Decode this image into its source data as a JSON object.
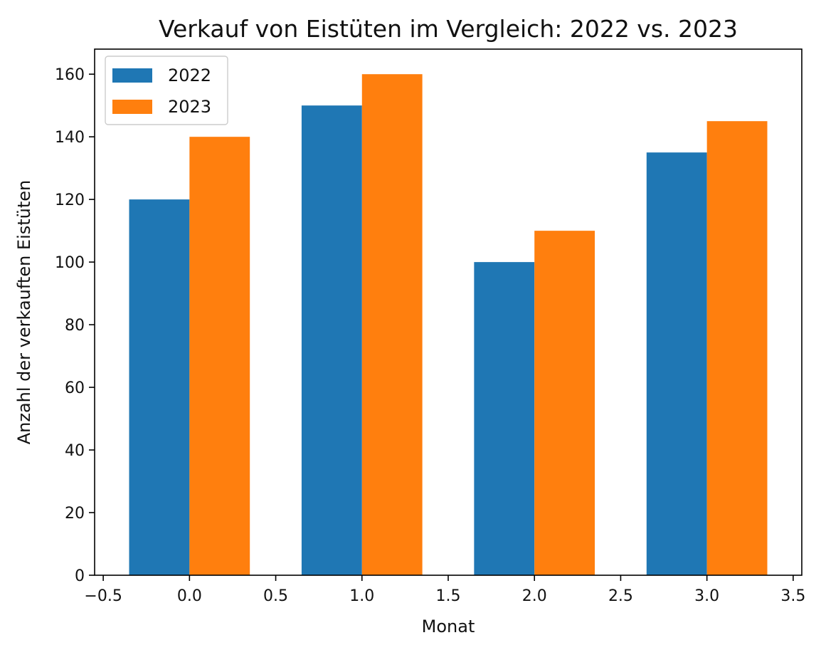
{
  "chart_data": {
    "type": "bar",
    "title": "Verkauf von Eistüten im Vergleich: 2022 vs. 2023",
    "xlabel": "Monat",
    "ylabel": "Anzahl der verkauften Eistüten",
    "x": [
      0,
      1,
      2,
      3
    ],
    "bar_width": 0.35,
    "xlim": [
      -0.55,
      3.55
    ],
    "ylim": [
      0,
      168
    ],
    "xticks": [
      -0.5,
      0.0,
      0.5,
      1.0,
      1.5,
      2.0,
      2.5,
      3.0,
      3.5
    ],
    "xtick_labels": [
      "−0.5",
      "0.0",
      "0.5",
      "1.0",
      "1.5",
      "2.0",
      "2.5",
      "3.0",
      "3.5"
    ],
    "yticks": [
      0,
      20,
      40,
      60,
      80,
      100,
      120,
      140,
      160
    ],
    "ytick_labels": [
      "0",
      "20",
      "40",
      "60",
      "80",
      "100",
      "120",
      "140",
      "160"
    ],
    "grid": false,
    "legend": "top-left",
    "series": [
      {
        "name": "2022",
        "color": "#1f77b4",
        "values": [
          120,
          150,
          100,
          135
        ]
      },
      {
        "name": "2023",
        "color": "#ff7f0e",
        "values": [
          140,
          160,
          110,
          145
        ]
      }
    ]
  }
}
